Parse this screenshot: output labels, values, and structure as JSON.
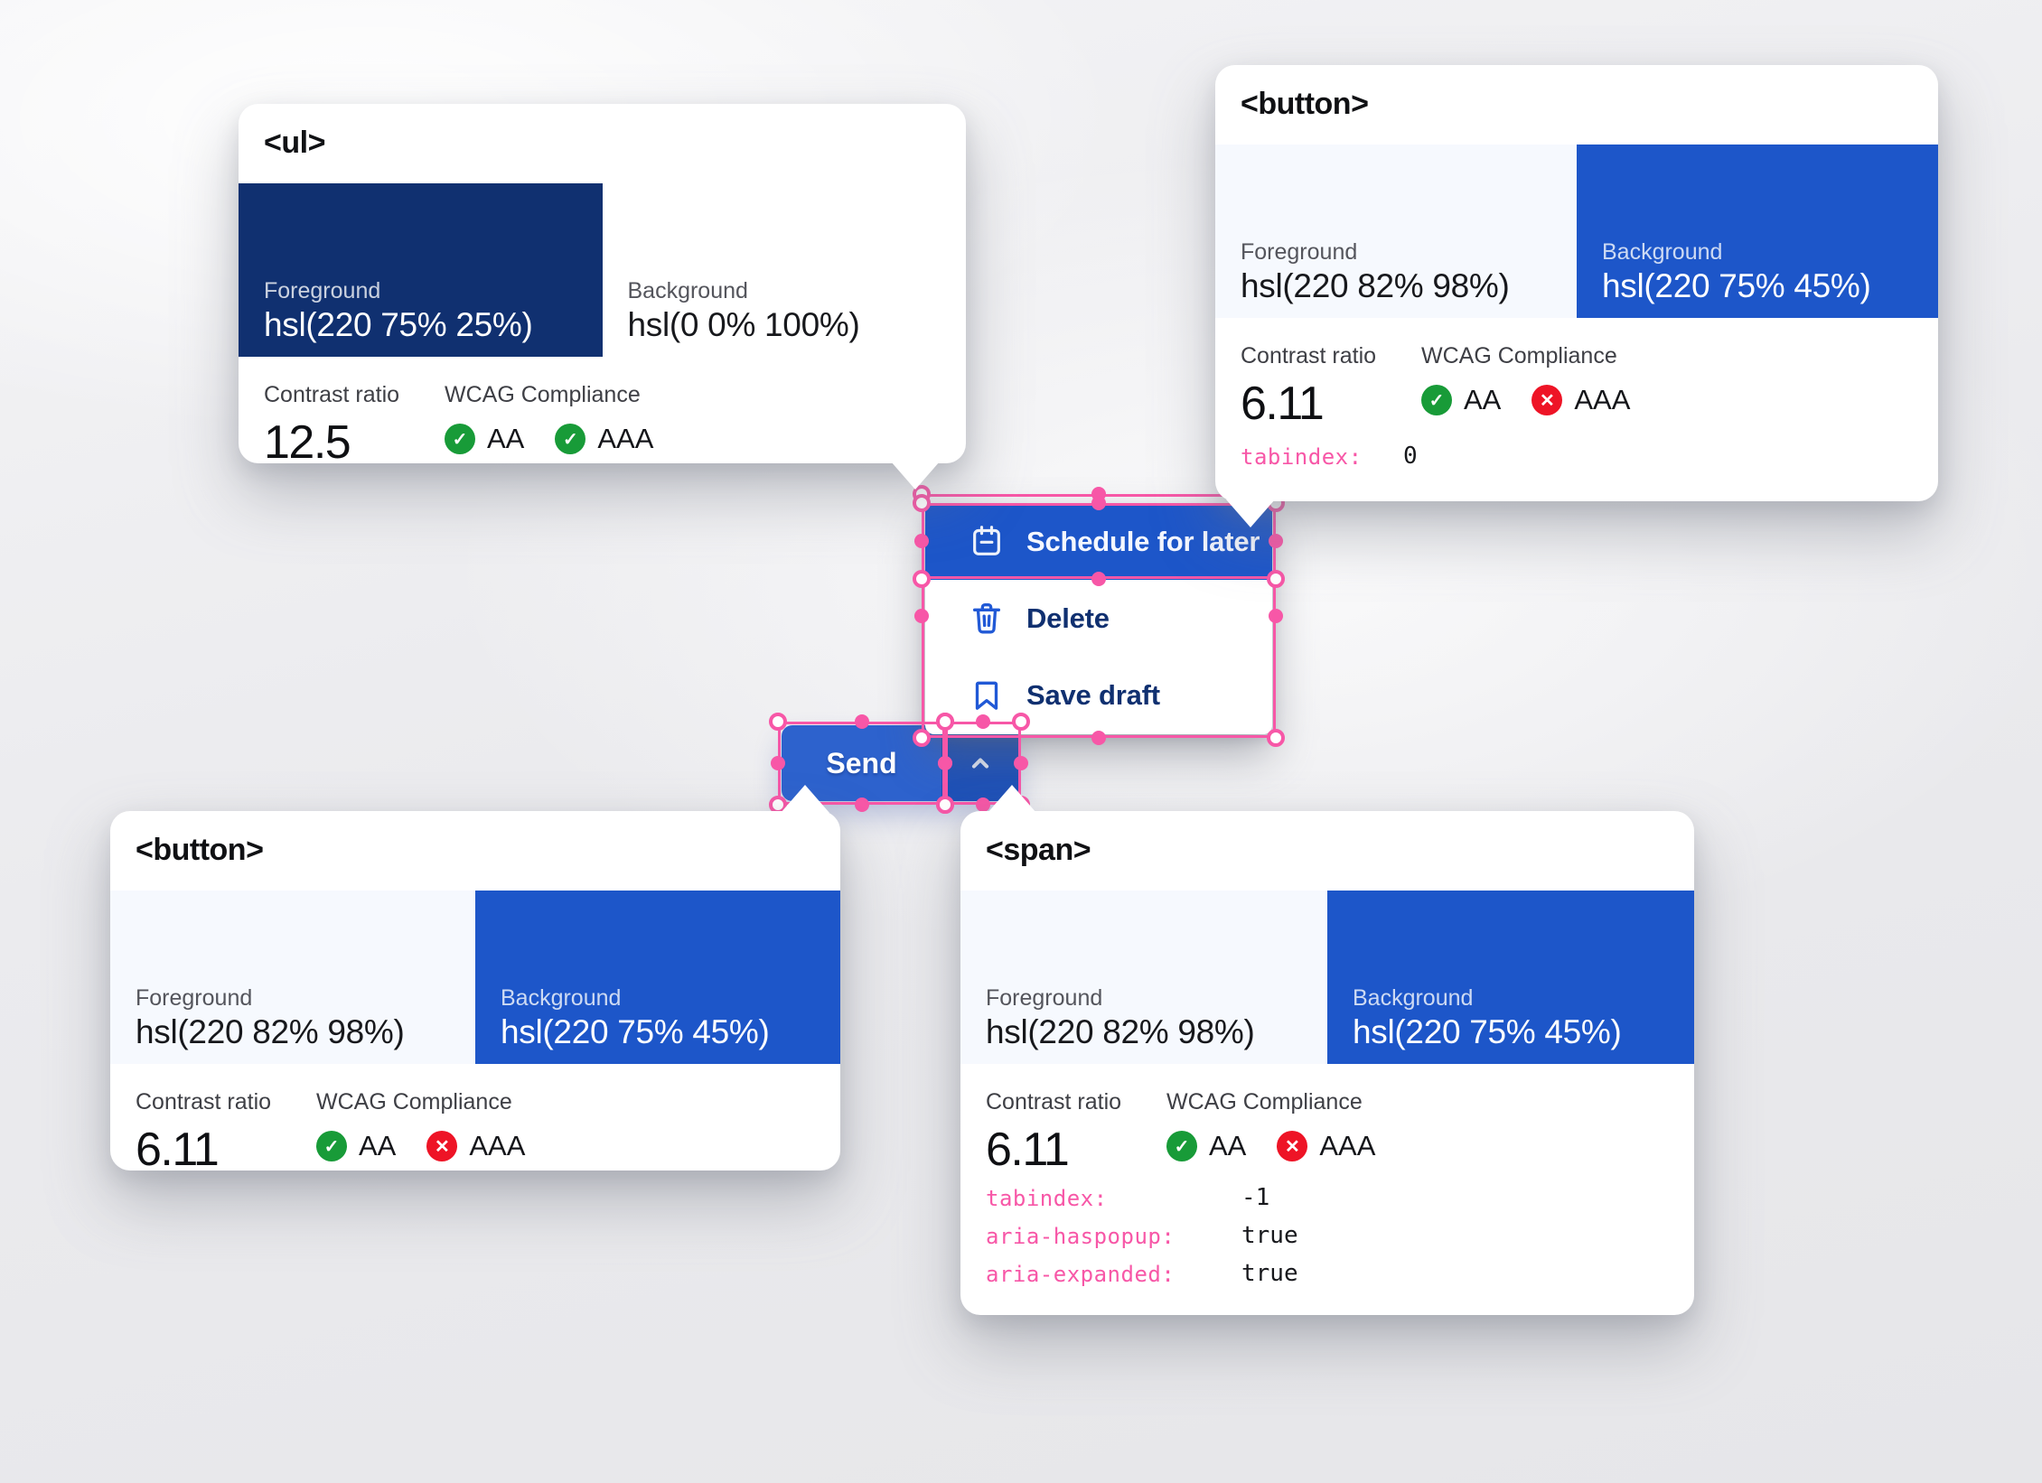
{
  "colors": {
    "accent_blue": "hsl(220, 75%, 45%)",
    "accent_blue_light": "hsl(220, 64%, 49%)",
    "accent_blue_dark": "hsl(220, 72%, 42%)",
    "navy": "hsl(220, 75%, 25%)",
    "light_foreground": "hsl(220, 82%, 98%)",
    "pure_white": "hsl(0, 0%, 100%)",
    "selection_pink": "#f757a7",
    "pass_green": "#189b38",
    "fail_red": "#ee1426",
    "menu_icon_blue": "#2159d6"
  },
  "icons": {
    "pass_glyph": "✓",
    "fail_glyph": "✕"
  },
  "labels": {
    "foreground": "Foreground",
    "background": "Background",
    "contrast_ratio": "Contrast ratio",
    "wcag": "WCAG Compliance",
    "aa": "AA",
    "aaa": "AAA"
  },
  "cards": {
    "ul": {
      "tag": "<ul>",
      "foreground_value": "hsl(220 75% 25%)",
      "background_value": "hsl(0 0% 100%)",
      "contrast_value": "12.5",
      "aa_pass": true,
      "aaa_pass": true,
      "attributes": []
    },
    "button_top": {
      "tag": "<button>",
      "foreground_value": "hsl(220 82% 98%)",
      "background_value": "hsl(220 75% 45%)",
      "contrast_value": "6.11",
      "aa_pass": true,
      "aaa_pass": false,
      "attributes": [
        {
          "name": "tabindex:",
          "value": "0"
        }
      ]
    },
    "button_bottom": {
      "tag": "<button>",
      "foreground_value": "hsl(220 82% 98%)",
      "background_value": "hsl(220 75% 45%)",
      "contrast_value": "6.11",
      "aa_pass": true,
      "aaa_pass": false,
      "attributes": []
    },
    "span": {
      "tag": "<span>",
      "foreground_value": "hsl(220 82% 98%)",
      "background_value": "hsl(220 75% 45%)",
      "contrast_value": "6.11",
      "aa_pass": true,
      "aaa_pass": false,
      "attributes": [
        {
          "name": "tabindex:",
          "value": "-1"
        },
        {
          "name": "aria-haspopup:",
          "value": "true"
        },
        {
          "name": "aria-expanded:",
          "value": "true"
        }
      ]
    }
  },
  "menu": {
    "items": [
      {
        "label": "Schedule for later",
        "icon": "calendar",
        "selected": true
      },
      {
        "label": "Delete",
        "icon": "trash",
        "selected": false
      },
      {
        "label": "Save draft",
        "icon": "bookmark",
        "selected": false
      }
    ]
  },
  "split_button": {
    "label": "Send",
    "toggle_icon": "chevron-up"
  }
}
